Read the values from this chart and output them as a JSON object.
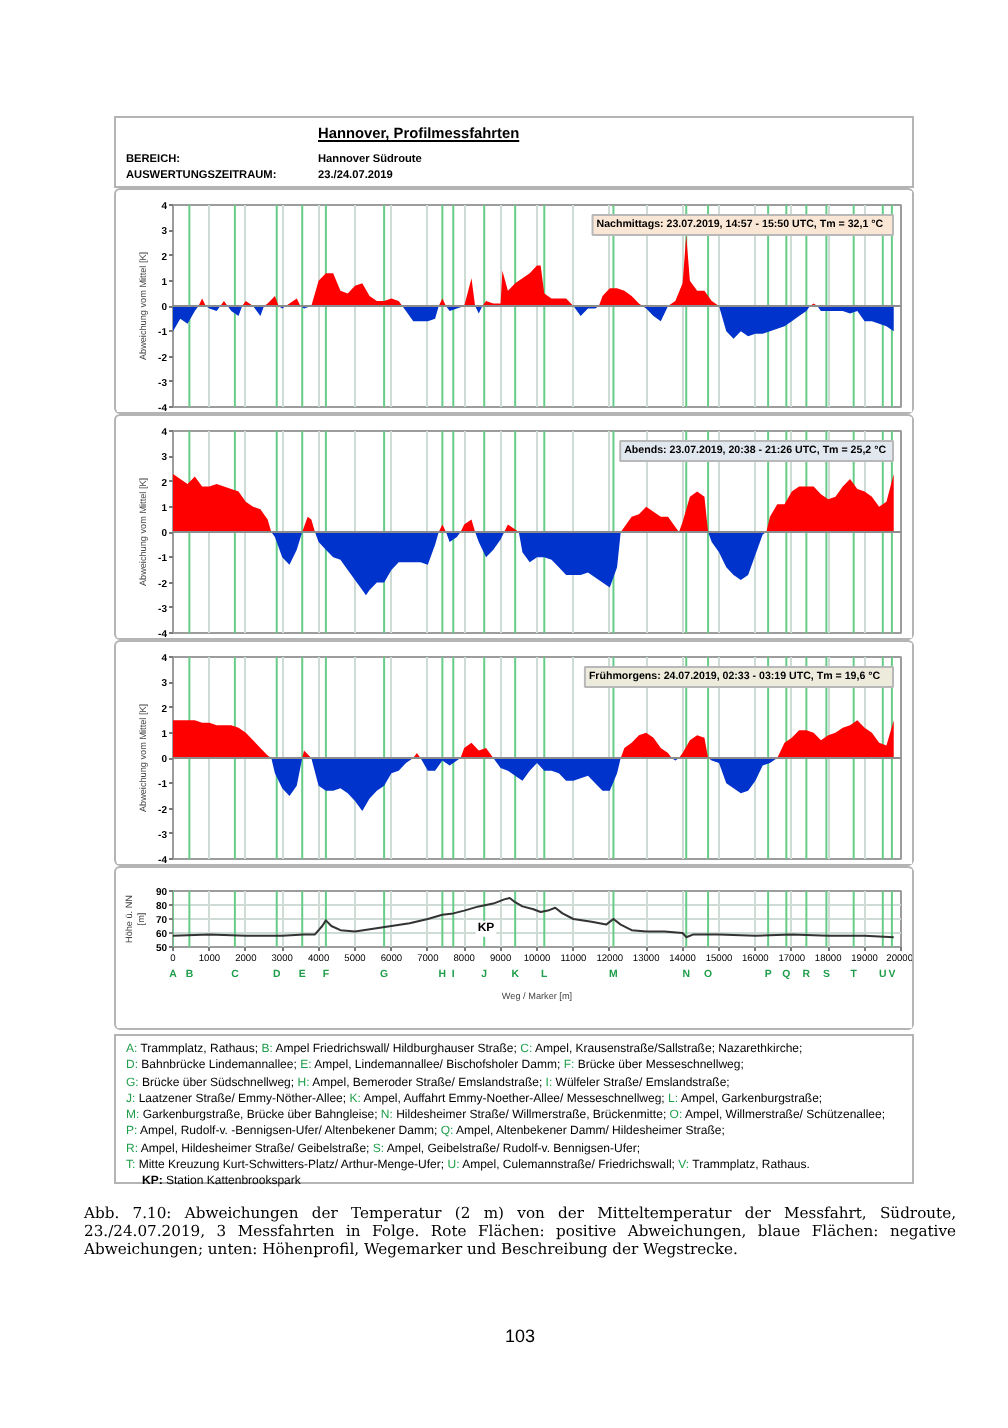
{
  "chart_data": [
    {
      "type": "other",
      "title": "Hannover, Profilmessfahrten",
      "annotations": [
        "BEREICH:",
        "Hannover Südroute",
        "AUSWERTUNGSZEITRAUM:",
        "23./24.07.2019"
      ]
    },
    {
      "type": "area",
      "ylabel": "Abweichung vom Mittel [K]",
      "annotations": [
        "Nachmittags: 23.07.2019,  14:57  - 15:50 UTC, Tm = 32,1 °C"
      ],
      "xlim": [
        0,
        20000
      ],
      "xticks": [
        0,
        1000,
        2000,
        3000,
        4000,
        5000,
        6000,
        7000,
        8000,
        9000,
        10000,
        11000,
        12000,
        13000,
        14000,
        15000,
        16000,
        17000,
        18000,
        19000,
        20000
      ],
      "ylim": [
        -4,
        4
      ],
      "yticks": [
        -4,
        -3,
        -2,
        -1,
        0,
        1,
        2,
        3,
        4
      ],
      "tick_labels": "y",
      "grid": "x",
      "ref_lines": [
        {
          "axis": "x",
          "value": 450,
          "color": "#66cc88"
        },
        {
          "axis": "x",
          "value": 1700,
          "color": "#66cc88"
        },
        {
          "axis": "x",
          "value": 2850,
          "color": "#66cc88"
        },
        {
          "axis": "x",
          "value": 3550,
          "color": "#66cc88"
        },
        {
          "axis": "x",
          "value": 4200,
          "color": "#66cc88"
        },
        {
          "axis": "x",
          "value": 5800,
          "color": "#66cc88"
        },
        {
          "axis": "x",
          "value": 7400,
          "color": "#66cc88"
        },
        {
          "axis": "x",
          "value": 7700,
          "color": "#66cc88"
        },
        {
          "axis": "x",
          "value": 8550,
          "color": "#66cc88"
        },
        {
          "axis": "x",
          "value": 9400,
          "color": "#66cc88"
        },
        {
          "axis": "x",
          "value": 10200,
          "color": "#66cc88"
        },
        {
          "axis": "x",
          "value": 12100,
          "color": "#66cc88"
        },
        {
          "axis": "x",
          "value": 14100,
          "color": "#66cc88"
        },
        {
          "axis": "x",
          "value": 14700,
          "color": "#66cc88"
        },
        {
          "axis": "x",
          "value": 16350,
          "color": "#66cc88"
        },
        {
          "axis": "x",
          "value": 16850,
          "color": "#66cc88"
        },
        {
          "axis": "x",
          "value": 17400,
          "color": "#66cc88"
        },
        {
          "axis": "x",
          "value": 17950,
          "color": "#66cc88"
        },
        {
          "axis": "x",
          "value": 18700,
          "color": "#66cc88"
        },
        {
          "axis": "x",
          "value": 19500,
          "color": "#66cc88"
        },
        {
          "axis": "x",
          "value": 19750,
          "color": "#66cc88"
        },
        {
          "axis": "y",
          "value": 0,
          "color": "#8c8c8c"
        }
      ],
      "series": [
        {
          "color": "#ff0000",
          "x": [
            700,
            800,
            900,
            1300,
            1400,
            1500,
            1900,
            2000,
            2200,
            2500,
            2600,
            2800,
            2900,
            3100,
            3200,
            3400,
            3500,
            3800,
            4000,
            4200,
            4400,
            4600,
            4800,
            5000,
            5200,
            5400,
            5600,
            5800,
            6000,
            6200,
            6300,
            7300,
            7400,
            7500,
            8000,
            8200,
            8300,
            8500,
            8600,
            8800,
            9000,
            9050,
            9200,
            9400,
            9600,
            9800,
            10000,
            10100,
            10200,
            10400,
            10600,
            10800,
            11000,
            11700,
            11800,
            12000,
            12200,
            12400,
            12600,
            12800,
            12900,
            13600,
            13800,
            14000,
            14100,
            14200,
            14400,
            14600,
            14800,
            15000,
            17500,
            17600,
            17700
          ],
          "values": [
            0,
            0.3,
            0,
            0,
            0.2,
            0,
            0,
            0.2,
            0,
            0,
            0.1,
            0.4,
            0,
            0,
            0.1,
            0.3,
            0,
            0,
            1.0,
            1.3,
            1.3,
            0.6,
            0.5,
            0.8,
            0.9,
            0.4,
            0.2,
            0.2,
            0.3,
            0.2,
            0,
            0,
            0.3,
            0,
            0,
            1.1,
            0,
            0,
            0.2,
            0.1,
            0.1,
            1.4,
            0.6,
            0.9,
            1.1,
            1.3,
            1.6,
            1.6,
            0.5,
            0.3,
            0.3,
            0.3,
            0,
            0,
            0.4,
            0.7,
            0.7,
            0.6,
            0.4,
            0.1,
            0,
            0,
            0.2,
            0.9,
            2.8,
            1.0,
            0.6,
            0.6,
            0.2,
            0,
            0,
            0.1,
            0
          ]
        },
        {
          "color": "#0033cc",
          "x": [
            0,
            200,
            400,
            600,
            700,
            900,
            1000,
            1200,
            1300,
            1500,
            1600,
            1800,
            1900,
            2200,
            2400,
            2500,
            2900,
            3000,
            3100,
            3500,
            3600,
            3800,
            6300,
            6400,
            6600,
            6800,
            7000,
            7200,
            7300,
            7500,
            7600,
            7800,
            8000,
            8300,
            8400,
            8500,
            11000,
            11200,
            11400,
            11600,
            11700,
            12900,
            13000,
            13200,
            13400,
            13600,
            15000,
            15200,
            15400,
            15600,
            15800,
            16000,
            16200,
            16400,
            16600,
            16800,
            17000,
            17200,
            17400,
            17500,
            17700,
            17800,
            18000,
            18200,
            18400,
            18600,
            18800,
            19000,
            19200,
            19400,
            19600,
            19800
          ],
          "values": [
            -1.0,
            -0.5,
            -0.7,
            -0.2,
            0,
            0,
            -0.1,
            -0.2,
            0,
            0,
            -0.2,
            -0.4,
            0,
            0,
            -0.4,
            0,
            0,
            -0.1,
            0,
            0,
            -0.1,
            0,
            0,
            -0.2,
            -0.6,
            -0.6,
            -0.6,
            -0.5,
            0,
            0,
            -0.2,
            -0.1,
            0,
            0,
            -0.3,
            0,
            0,
            -0.4,
            -0.1,
            -0.1,
            0,
            0,
            -0.1,
            -0.4,
            -0.6,
            0,
            0,
            -1.0,
            -1.3,
            -1.0,
            -1.2,
            -1.1,
            -1.1,
            -1.0,
            -0.9,
            -0.8,
            -0.6,
            -0.4,
            -0.2,
            0,
            0,
            -0.2,
            -0.2,
            -0.2,
            -0.2,
            -0.3,
            -0.2,
            -0.6,
            -0.6,
            -0.7,
            -0.8,
            -1.0
          ]
        }
      ]
    },
    {
      "type": "area",
      "ylabel": "Abweichung vom Mittel [K]",
      "annotations": [
        "Abends: 23.07.2019,  20:38 - 21:26 UTC, Tm = 25,2 °C"
      ],
      "xlim": [
        0,
        20000
      ],
      "xticks": [
        0,
        1000,
        2000,
        3000,
        4000,
        5000,
        6000,
        7000,
        8000,
        9000,
        10000,
        11000,
        12000,
        13000,
        14000,
        15000,
        16000,
        17000,
        18000,
        19000,
        20000
      ],
      "ylim": [
        -4,
        4
      ],
      "yticks": [
        -4,
        -3,
        -2,
        -1,
        0,
        1,
        2,
        3,
        4
      ],
      "tick_labels": "y",
      "grid": "x",
      "ref_lines": [
        {
          "axis": "x",
          "value": 450,
          "color": "#66cc88"
        },
        {
          "axis": "x",
          "value": 1700,
          "color": "#66cc88"
        },
        {
          "axis": "x",
          "value": 2850,
          "color": "#66cc88"
        },
        {
          "axis": "x",
          "value": 3550,
          "color": "#66cc88"
        },
        {
          "axis": "x",
          "value": 4200,
          "color": "#66cc88"
        },
        {
          "axis": "x",
          "value": 5800,
          "color": "#66cc88"
        },
        {
          "axis": "x",
          "value": 7400,
          "color": "#66cc88"
        },
        {
          "axis": "x",
          "value": 7700,
          "color": "#66cc88"
        },
        {
          "axis": "x",
          "value": 8550,
          "color": "#66cc88"
        },
        {
          "axis": "x",
          "value": 9400,
          "color": "#66cc88"
        },
        {
          "axis": "x",
          "value": 10200,
          "color": "#66cc88"
        },
        {
          "axis": "x",
          "value": 12100,
          "color": "#66cc88"
        },
        {
          "axis": "x",
          "value": 14100,
          "color": "#66cc88"
        },
        {
          "axis": "x",
          "value": 14700,
          "color": "#66cc88"
        },
        {
          "axis": "x",
          "value": 16350,
          "color": "#66cc88"
        },
        {
          "axis": "x",
          "value": 16850,
          "color": "#66cc88"
        },
        {
          "axis": "x",
          "value": 17400,
          "color": "#66cc88"
        },
        {
          "axis": "x",
          "value": 17950,
          "color": "#66cc88"
        },
        {
          "axis": "x",
          "value": 18700,
          "color": "#66cc88"
        },
        {
          "axis": "x",
          "value": 19500,
          "color": "#66cc88"
        },
        {
          "axis": "x",
          "value": 19750,
          "color": "#66cc88"
        },
        {
          "axis": "y",
          "value": 0,
          "color": "#8c8c8c"
        }
      ],
      "series": [
        {
          "color": "#ff0000",
          "x": [
            0,
            200,
            400,
            600,
            800,
            1000,
            1200,
            1400,
            1600,
            1800,
            2000,
            2200,
            2400,
            2600,
            2700,
            3550,
            3700,
            3800,
            3900,
            7300,
            7400,
            7500,
            7900,
            8000,
            8200,
            8300,
            9100,
            9200,
            9400,
            9500,
            12300,
            12400,
            12600,
            12800,
            13000,
            13200,
            13400,
            13600,
            13800,
            13900,
            14000,
            14200,
            14400,
            14600,
            14700,
            16300,
            16400,
            16600,
            16800,
            17000,
            17200,
            17400,
            17600,
            17800,
            18000,
            18200,
            18400,
            18600,
            18800,
            19000,
            19200,
            19400,
            19600,
            19800
          ],
          "values": [
            2.3,
            2.1,
            1.9,
            2.2,
            1.8,
            1.8,
            1.9,
            1.8,
            1.7,
            1.6,
            1.2,
            1.0,
            0.9,
            0.5,
            0,
            0,
            0.6,
            0.5,
            0,
            0,
            0.3,
            0,
            0,
            0.3,
            0.5,
            0,
            0,
            0.3,
            0.1,
            0,
            0,
            0.2,
            0.6,
            0.7,
            1.0,
            0.8,
            0.6,
            0.6,
            0.2,
            0,
            0.4,
            1.4,
            1.6,
            1.4,
            0,
            0,
            0.6,
            1.1,
            1.1,
            1.6,
            1.8,
            1.8,
            1.8,
            1.5,
            1.3,
            1.4,
            1.8,
            2.1,
            1.7,
            1.6,
            1.4,
            1.0,
            1.2,
            2.3
          ]
        },
        {
          "color": "#0033cc",
          "x": [
            2700,
            2800,
            3000,
            3200,
            3400,
            3550,
            3900,
            4000,
            4200,
            4400,
            4600,
            4800,
            5000,
            5200,
            5300,
            5400,
            5600,
            5800,
            6000,
            6200,
            6400,
            6600,
            6800,
            7000,
            7200,
            7300,
            7500,
            7600,
            7800,
            7900,
            8300,
            8400,
            8600,
            8800,
            9000,
            9100,
            9500,
            9600,
            9800,
            10000,
            10200,
            10400,
            10600,
            10800,
            11000,
            11200,
            11400,
            11600,
            11800,
            12000,
            12200,
            12300,
            14700,
            14800,
            15000,
            15200,
            15400,
            15600,
            15800,
            16000,
            16200,
            16300
          ],
          "values": [
            0,
            -0.2,
            -1.0,
            -1.3,
            -0.7,
            0,
            0,
            -0.4,
            -0.7,
            -1.0,
            -1.1,
            -1.5,
            -1.9,
            -2.3,
            -2.5,
            -2.3,
            -2.0,
            -2.0,
            -1.5,
            -1.2,
            -1.2,
            -1.2,
            -1.2,
            -1.3,
            -0.5,
            0,
            0,
            -0.4,
            -0.2,
            0,
            0,
            -0.4,
            -1.0,
            -0.7,
            -0.3,
            0,
            0,
            -0.8,
            -1.2,
            -1.0,
            -1.0,
            -1.1,
            -1.4,
            -1.7,
            -1.7,
            -1.7,
            -1.6,
            -1.8,
            -2.0,
            -2.2,
            -1.4,
            0,
            0,
            -0.4,
            -0.8,
            -1.4,
            -1.7,
            -1.9,
            -1.7,
            -0.9,
            -0.1,
            0
          ]
        }
      ]
    },
    {
      "type": "area",
      "ylabel": "Abweichung vom Mittel [K]",
      "annotations": [
        "Frühmorgens: 24.07.2019,   02:33 - 03:19  UTC, Tm = 19,6 °C"
      ],
      "xlim": [
        0,
        20000
      ],
      "xticks": [
        0,
        1000,
        2000,
        3000,
        4000,
        5000,
        6000,
        7000,
        8000,
        9000,
        10000,
        11000,
        12000,
        13000,
        14000,
        15000,
        16000,
        17000,
        18000,
        19000,
        20000
      ],
      "ylim": [
        -4,
        4
      ],
      "yticks": [
        -4,
        -3,
        -2,
        -1,
        0,
        1,
        2,
        3,
        4
      ],
      "tick_labels": "y",
      "grid": "x",
      "ref_lines": [
        {
          "axis": "x",
          "value": 450,
          "color": "#66cc88"
        },
        {
          "axis": "x",
          "value": 1700,
          "color": "#66cc88"
        },
        {
          "axis": "x",
          "value": 2850,
          "color": "#66cc88"
        },
        {
          "axis": "x",
          "value": 3550,
          "color": "#66cc88"
        },
        {
          "axis": "x",
          "value": 4200,
          "color": "#66cc88"
        },
        {
          "axis": "x",
          "value": 5800,
          "color": "#66cc88"
        },
        {
          "axis": "x",
          "value": 7400,
          "color": "#66cc88"
        },
        {
          "axis": "x",
          "value": 7700,
          "color": "#66cc88"
        },
        {
          "axis": "x",
          "value": 8550,
          "color": "#66cc88"
        },
        {
          "axis": "x",
          "value": 9400,
          "color": "#66cc88"
        },
        {
          "axis": "x",
          "value": 10200,
          "color": "#66cc88"
        },
        {
          "axis": "x",
          "value": 12100,
          "color": "#66cc88"
        },
        {
          "axis": "x",
          "value": 14100,
          "color": "#66cc88"
        },
        {
          "axis": "x",
          "value": 14700,
          "color": "#66cc88"
        },
        {
          "axis": "x",
          "value": 16350,
          "color": "#66cc88"
        },
        {
          "axis": "x",
          "value": 16850,
          "color": "#66cc88"
        },
        {
          "axis": "x",
          "value": 17400,
          "color": "#66cc88"
        },
        {
          "axis": "x",
          "value": 17950,
          "color": "#66cc88"
        },
        {
          "axis": "x",
          "value": 18700,
          "color": "#66cc88"
        },
        {
          "axis": "x",
          "value": 19500,
          "color": "#66cc88"
        },
        {
          "axis": "x",
          "value": 19750,
          "color": "#66cc88"
        },
        {
          "axis": "y",
          "value": 0,
          "color": "#8c8c8c"
        }
      ],
      "series": [
        {
          "color": "#ff0000",
          "x": [
            0,
            200,
            400,
            600,
            800,
            1000,
            1200,
            1400,
            1600,
            1800,
            2000,
            2200,
            2400,
            2600,
            2700,
            3550,
            3600,
            3800,
            6600,
            6700,
            6800,
            7900,
            8000,
            8200,
            8400,
            8600,
            8800,
            12300,
            12400,
            12600,
            12800,
            13000,
            13200,
            13400,
            13600,
            13700,
            13900,
            14000,
            14200,
            14400,
            14600,
            14700,
            16600,
            16800,
            17000,
            17200,
            17400,
            17600,
            17800,
            18000,
            18200,
            18400,
            18600,
            18800,
            19000,
            19200,
            19400,
            19600,
            19800
          ],
          "values": [
            1.5,
            1.5,
            1.5,
            1.5,
            1.4,
            1.4,
            1.3,
            1.3,
            1.3,
            1.2,
            1.0,
            0.7,
            0.4,
            0.1,
            0,
            0,
            0.3,
            0,
            0,
            0.2,
            0,
            0,
            0.4,
            0.6,
            0.3,
            0.4,
            0,
            0,
            0.4,
            0.6,
            0.9,
            1.0,
            0.8,
            0.4,
            0.2,
            0,
            0,
            0.2,
            0.7,
            0.9,
            0.8,
            0,
            0,
            0.6,
            0.8,
            1.1,
            1.1,
            1.0,
            0.7,
            0.9,
            1.0,
            1.2,
            1.3,
            1.5,
            1.2,
            1.0,
            0.6,
            0.5,
            1.5
          ]
        },
        {
          "color": "#0033cc",
          "x": [
            2700,
            2800,
            3000,
            3200,
            3400,
            3550,
            3800,
            4000,
            4200,
            4400,
            4600,
            4800,
            5000,
            5200,
            5400,
            5600,
            5800,
            6000,
            6200,
            6400,
            6600,
            6800,
            7000,
            7200,
            7400,
            7600,
            7800,
            7900,
            8800,
            9000,
            9200,
            9400,
            9600,
            9800,
            10000,
            10200,
            10400,
            10600,
            10800,
            11000,
            11200,
            11400,
            11600,
            11800,
            12000,
            12200,
            12300,
            13700,
            13800,
            13900,
            14700,
            14800,
            15000,
            15200,
            15400,
            15600,
            15800,
            16000,
            16200,
            16400,
            16600
          ],
          "values": [
            0,
            -0.6,
            -1.2,
            -1.5,
            -1.1,
            0,
            0,
            -1.1,
            -1.3,
            -1.3,
            -1.2,
            -1.4,
            -1.7,
            -2.1,
            -1.6,
            -1.3,
            -1.1,
            -0.6,
            -0.5,
            -0.2,
            0,
            0,
            -0.5,
            -0.5,
            -0.1,
            -0.3,
            -0.1,
            0,
            0,
            -0.4,
            -0.5,
            -0.7,
            -0.9,
            -0.5,
            -0.2,
            -0.5,
            -0.5,
            -0.6,
            -0.9,
            -0.9,
            -0.8,
            -0.7,
            -1.0,
            -1.3,
            -1.3,
            -0.6,
            0,
            0,
            -0.1,
            0,
            0,
            -0.1,
            -0.2,
            -1.0,
            -1.2,
            -1.4,
            -1.3,
            -0.9,
            -0.3,
            -0.2,
            0
          ]
        }
      ]
    },
    {
      "type": "line",
      "ylabel": "Höhe ü. NN [m]",
      "xlabel": "Weg / Marker [m]",
      "annotations": [
        {
          "text": "KP",
          "x": 8600,
          "y": 63
        }
      ],
      "xlim": [
        0,
        20000
      ],
      "xticks": [
        0,
        1000,
        2000,
        3000,
        4000,
        5000,
        6000,
        7000,
        8000,
        9000,
        10000,
        11000,
        12000,
        13000,
        14000,
        15000,
        16000,
        17000,
        18000,
        19000,
        20000
      ],
      "ylim": [
        50,
        90
      ],
      "yticks": [
        50,
        60,
        70,
        80,
        90
      ],
      "grid": true,
      "ref_lines": [
        {
          "axis": "x",
          "value": 0,
          "label": "A",
          "color": "#66cc88"
        },
        {
          "axis": "x",
          "value": 450,
          "label": "B",
          "color": "#66cc88"
        },
        {
          "axis": "x",
          "value": 1700,
          "label": "C",
          "color": "#66cc88"
        },
        {
          "axis": "x",
          "value": 2850,
          "label": "D",
          "color": "#66cc88"
        },
        {
          "axis": "x",
          "value": 3550,
          "label": "E",
          "color": "#66cc88"
        },
        {
          "axis": "x",
          "value": 4200,
          "label": "F",
          "color": "#66cc88"
        },
        {
          "axis": "x",
          "value": 5800,
          "label": "G",
          "color": "#66cc88"
        },
        {
          "axis": "x",
          "value": 7400,
          "label": "H",
          "color": "#66cc88"
        },
        {
          "axis": "x",
          "value": 7700,
          "label": "I",
          "color": "#66cc88"
        },
        {
          "axis": "x",
          "value": 8550,
          "label": "J",
          "color": "#66cc88"
        },
        {
          "axis": "x",
          "value": 9400,
          "label": "K",
          "color": "#66cc88"
        },
        {
          "axis": "x",
          "value": 10200,
          "label": "L",
          "color": "#66cc88"
        },
        {
          "axis": "x",
          "value": 12100,
          "label": "M",
          "color": "#66cc88"
        },
        {
          "axis": "x",
          "value": 14100,
          "label": "N",
          "color": "#66cc88"
        },
        {
          "axis": "x",
          "value": 14700,
          "label": "O",
          "color": "#66cc88"
        },
        {
          "axis": "x",
          "value": 16350,
          "label": "P",
          "color": "#66cc88"
        },
        {
          "axis": "x",
          "value": 16850,
          "label": "Q",
          "color": "#66cc88"
        },
        {
          "axis": "x",
          "value": 17400,
          "label": "R",
          "color": "#66cc88"
        },
        {
          "axis": "x",
          "value": 17950,
          "label": "S",
          "color": "#66cc88"
        },
        {
          "axis": "x",
          "value": 18700,
          "label": "T",
          "color": "#66cc88"
        },
        {
          "axis": "x",
          "value": 19500,
          "label": "U",
          "color": "#66cc88"
        },
        {
          "axis": "x",
          "value": 19750,
          "label": "V",
          "color": "#66cc88"
        }
      ],
      "series": [
        {
          "color": "#333333",
          "x": [
            0,
            1000,
            2000,
            3000,
            3600,
            3900,
            4100,
            4200,
            4350,
            4600,
            5000,
            5500,
            6000,
            6500,
            7000,
            7400,
            7700,
            8000,
            8400,
            8800,
            9100,
            9250,
            9400,
            9600,
            9900,
            10100,
            10300,
            10500,
            10700,
            11000,
            11500,
            11900,
            12100,
            12300,
            12600,
            13000,
            13500,
            14000,
            14100,
            14300,
            15000,
            16000,
            17000,
            18000,
            19000,
            19800
          ],
          "values": [
            58,
            59,
            58,
            58,
            59,
            59,
            65,
            69,
            65,
            62,
            61,
            63,
            65,
            67,
            70,
            73,
            74,
            76,
            79,
            81,
            84,
            85,
            82,
            79,
            77,
            75,
            76,
            78,
            74,
            70,
            68,
            66,
            70,
            66,
            62,
            61,
            61,
            60,
            57,
            59,
            59,
            58,
            59,
            58,
            58,
            57
          ]
        }
      ]
    },
    {
      "type": "other",
      "annotations": [
        "A: Trammplatz, Rathaus;",
        "B: Ampel Friedrichswall/ Hildburghauser Straße;",
        "C: Ampel, Krausenstraße/Sallstraße; Nazarethkirche;",
        "D: Bahnbrücke Lindemannallee;",
        "E: Ampel, Lindemannallee/ Bischofsholer Damm;",
        "F: Brücke über Messeschnellweg;",
        "G: Brücke über Südschnellweg;",
        "H: Ampel, Bemeroder Straße/ Emslandstraße;",
        "I: Wülfeler Straße/ Emslandstraße;",
        "J: Laatzener Straße/ Emmy-Nöther-Allee;",
        "K: Ampel, Auffahrt Emmy-Noether-Allee/ Messeschnellweg;",
        "L: Ampel, Garkenburgstraße;",
        "M: Garkenburgstraße, Brücke über Bahngleise;",
        "N: Hildesheimer Straße/ Willmerstraße, Brückenmitte;",
        "O: Ampel, Willmerstraße/ Schützenallee;",
        "P: Ampel, Rudolf-v. -Bennigsen-Ufer/ Altenbekener Damm;",
        "Q: Ampel, Altenbekener Damm/ Hildesheimer Straße;",
        "R: Ampel, Hildesheimer Straße/ Geibelstraße;",
        "S: Ampel, Geibelstraße/ Rudolf-v. Bennigsen-Ufer;",
        "T: Mitte Kreuzung Kurt-Schwitters-Platz/ Arthur-Menge-Ufer;",
        "U: Ampel, Culemannstraße/ Friedrichswall;",
        "V: Trammplatz, Rathaus.",
        "KP: Station Kattenbrookspark"
      ]
    },
    {
      "type": "other",
      "annotations": [
        "Abb. 7.10: Abweichungen der Temperatur (2 m) von der Mitteltemperatur der Messfahrt, Südroute, 23./24.07.2019, 3 Messfahrten in Folge. Rote Flächen: positive Abweichungen, blaue Flächen: negative Abweichungen; unten: Höhenprofil, Wegemarker und Beschreibung der Wegstrecke.",
        "103"
      ]
    }
  ]
}
